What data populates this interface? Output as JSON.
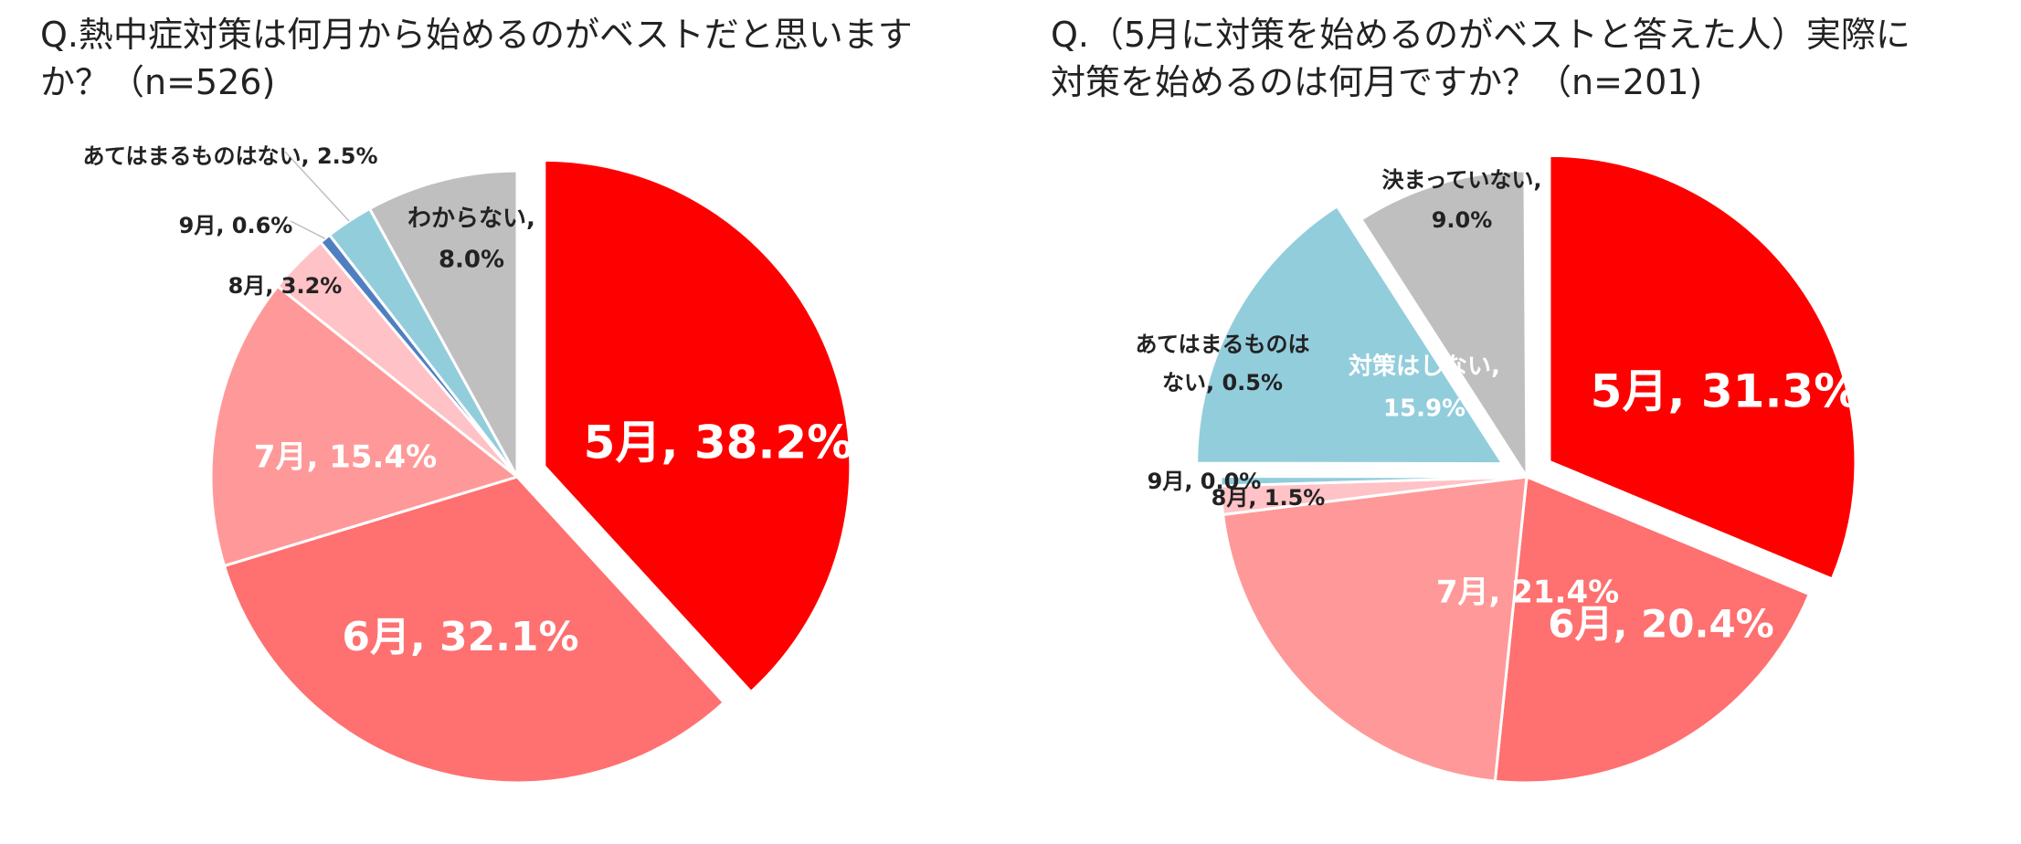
{
  "chart_data": [
    {
      "type": "pie",
      "title_lines": [
        "Q.熱中症対策は何月から始めるのがベストだと思います",
        "か？（n=526)"
      ],
      "slices": [
        {
          "label": "5月, 38.2%",
          "value": 38.2,
          "color": "#ff0000",
          "text_color": "#ffffff",
          "exploded": true
        },
        {
          "label": "6月, 32.1%",
          "value": 32.1,
          "color": "#ff7070",
          "text_color": "#ffffff"
        },
        {
          "label": "7月, 15.4%",
          "value": 15.4,
          "color": "#ff9999",
          "text_color": "#ffffff"
        },
        {
          "label": "8月, 3.2%",
          "value": 3.2,
          "color": "#ffc2c6",
          "text_color": "#222222"
        },
        {
          "label": "9月, 0.6%",
          "value": 0.6,
          "color": "#4f7fc0",
          "text_color": "#222222"
        },
        {
          "label": "あてはまるものはない, 2.5%",
          "value": 2.5,
          "color": "#92cddc",
          "text_color": "#222222"
        },
        {
          "label_lines": [
            "わからない,",
            "8.0%"
          ],
          "value": 8.0,
          "color": "#bfbfbf",
          "text_color": "#222222"
        }
      ]
    },
    {
      "type": "pie",
      "title_lines": [
        "Q.（5月に対策を始めるのがベストと答えた人）実際に",
        "対策を始めるのは何月ですか？（n=201)"
      ],
      "slices": [
        {
          "label": "5月, 31.3%",
          "value": 31.3,
          "color": "#ff0000",
          "text_color": "#ffffff",
          "exploded": true
        },
        {
          "label": "6月, 20.4%",
          "value": 20.4,
          "color": "#ff7070",
          "text_color": "#ffffff"
        },
        {
          "label": "7月, 21.4%",
          "value": 21.4,
          "color": "#ff9999",
          "text_color": "#ffffff"
        },
        {
          "label": "8月, 1.5%",
          "value": 1.5,
          "color": "#ffc2c6",
          "text_color": "#222222"
        },
        {
          "label": "9月, 0.0%",
          "value": 0.0,
          "color": "#4f7fc0",
          "text_color": "#222222"
        },
        {
          "label_lines": [
            "あてはまるものは",
            "ない, 0.5%"
          ],
          "value": 0.5,
          "color": "#92cddc",
          "text_color": "#222222"
        },
        {
          "label_lines": [
            "対策はしない,",
            "15.9%"
          ],
          "value": 15.9,
          "color": "#92cddc",
          "text_color": "#ffffff",
          "exploded": true
        },
        {
          "label_lines": [
            "決まっていない,",
            "9.0%"
          ],
          "value": 9.0,
          "color": "#bfbfbf",
          "text_color": "#222222"
        }
      ]
    }
  ]
}
